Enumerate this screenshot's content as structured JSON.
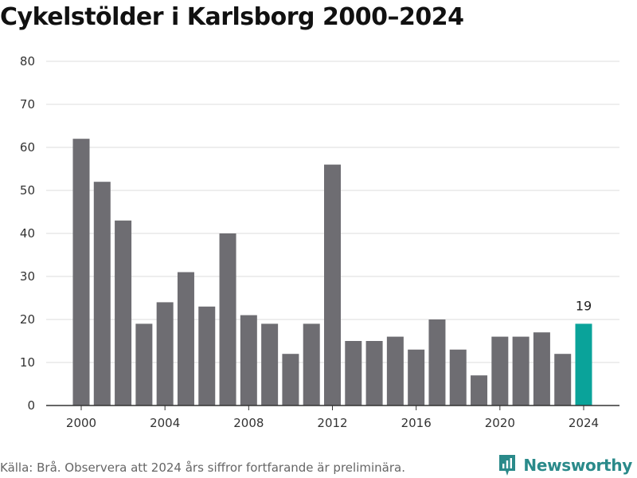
{
  "title": "Cykelstölder i Karlsborg 2000–2024",
  "source_note": "Källa: Brå. Observera att 2024 års siffror fortfarande är preliminära.",
  "brand": {
    "name": "Newsworthy"
  },
  "colors": {
    "bar": "#6e6d72",
    "highlight": "#0aa39a",
    "grid": "#dddddd",
    "axis": "#333333"
  },
  "chart_data": {
    "type": "bar",
    "title": "Cykelstölder i Karlsborg 2000–2024",
    "xlabel": "",
    "ylabel": "",
    "categories": [
      "2000",
      "2001",
      "2002",
      "2003",
      "2004",
      "2005",
      "2006",
      "2007",
      "2008",
      "2009",
      "2010",
      "2011",
      "2012",
      "2013",
      "2014",
      "2015",
      "2016",
      "2017",
      "2018",
      "2019",
      "2020",
      "2021",
      "2022",
      "2023",
      "2024"
    ],
    "values": [
      62,
      52,
      43,
      19,
      24,
      31,
      23,
      40,
      21,
      19,
      12,
      19,
      56,
      15,
      15,
      16,
      13,
      20,
      13,
      7,
      16,
      16,
      17,
      12,
      19
    ],
    "ylim": [
      0,
      80
    ],
    "yticks": [
      0,
      10,
      20,
      30,
      40,
      50,
      60,
      70,
      80
    ],
    "xticks": [
      "2000",
      "2004",
      "2008",
      "2012",
      "2016",
      "2020",
      "2024"
    ],
    "highlight_category": "2024",
    "data_labels": [
      {
        "category": "2024",
        "text": "19"
      }
    ],
    "grid": true
  }
}
